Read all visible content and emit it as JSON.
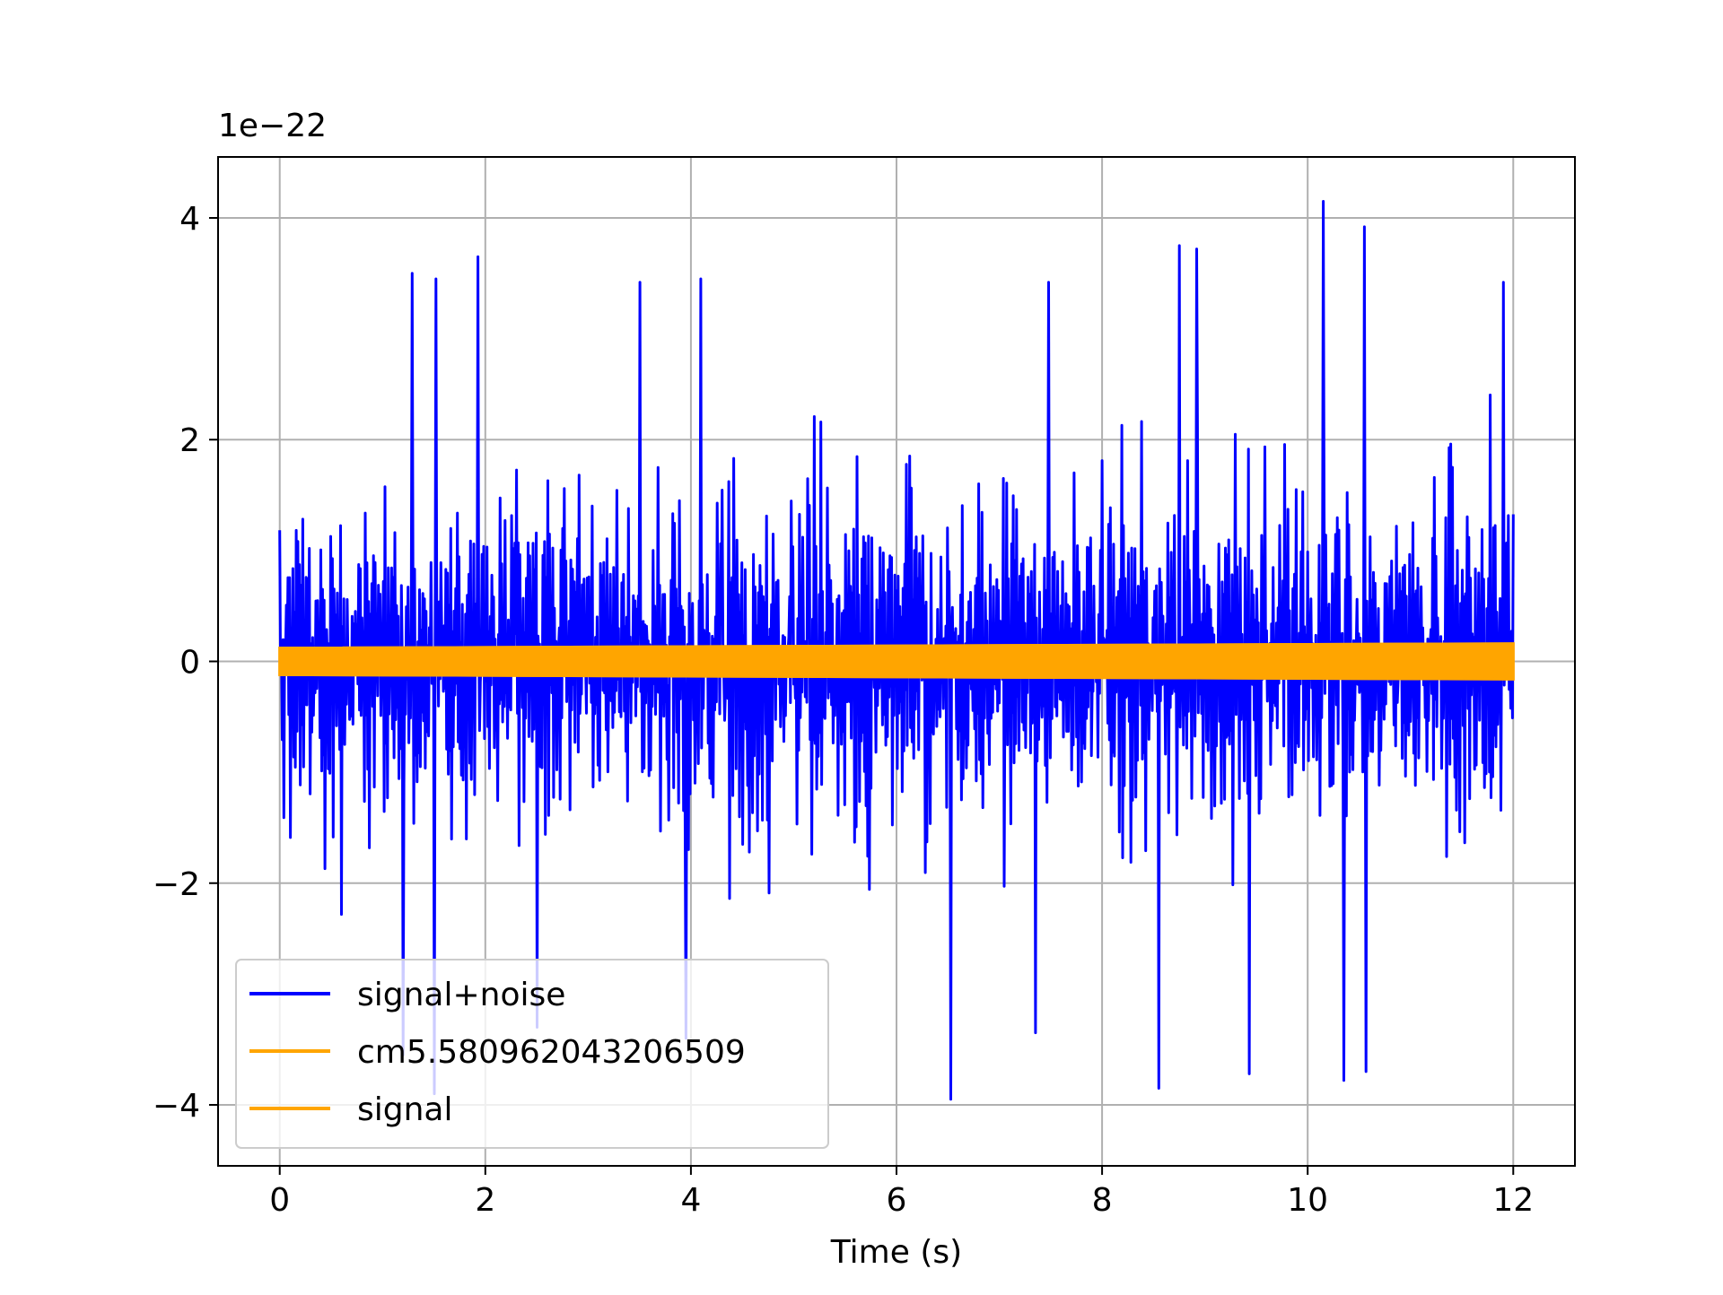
{
  "chart_data": {
    "type": "line",
    "title": "",
    "xlabel": "Time (s)",
    "ylabel": "",
    "y_offset_label": "1e−22",
    "xlim": [
      -0.6,
      12.6
    ],
    "ylim": [
      -4.55,
      4.55
    ],
    "x_ticks": [
      0,
      2,
      4,
      6,
      8,
      10,
      12
    ],
    "x_tick_labels": [
      "0",
      "2",
      "4",
      "6",
      "8",
      "10",
      "12"
    ],
    "y_ticks": [
      -4,
      -2,
      0,
      2,
      4
    ],
    "y_tick_labels": [
      "−4",
      "−2",
      "0",
      "2",
      "4"
    ],
    "grid": true,
    "legend_position": "lower-left",
    "series": [
      {
        "name": "signal+noise",
        "color": "#0000ff",
        "x_range": [
          0,
          12
        ],
        "typical_amplitude": 1.5,
        "max_value": 4.15,
        "min_value": -3.95,
        "peaks": [
          {
            "x": 10.15,
            "y": 4.15
          },
          {
            "x": 10.55,
            "y": 3.92
          },
          {
            "x": 8.75,
            "y": 3.75
          },
          {
            "x": 8.92,
            "y": 3.72
          },
          {
            "x": 1.93,
            "y": 3.65
          },
          {
            "x": 1.29,
            "y": 3.5
          },
          {
            "x": 4.1,
            "y": 3.45
          },
          {
            "x": 3.5,
            "y": 3.42
          },
          {
            "x": 11.9,
            "y": 3.42
          },
          {
            "x": 1.52,
            "y": 3.45
          },
          {
            "x": 7.48,
            "y": 3.42
          },
          {
            "x": 6.53,
            "y": -3.95
          },
          {
            "x": 1.5,
            "y": -3.9
          },
          {
            "x": 10.35,
            "y": -3.78
          },
          {
            "x": 8.55,
            "y": -3.85
          },
          {
            "x": 10.57,
            "y": -3.7
          },
          {
            "x": 9.43,
            "y": -3.72
          },
          {
            "x": 1.2,
            "y": -3.55
          },
          {
            "x": 3.95,
            "y": -3.4
          },
          {
            "x": 7.35,
            "y": -3.35
          },
          {
            "x": 2.5,
            "y": -3.3
          }
        ]
      },
      {
        "name": "cm5.580962043206509",
        "color": "#ffa500",
        "x_range": [
          0,
          12
        ],
        "amplitude_start": 0.12,
        "amplitude_end": 0.16
      },
      {
        "name": "signal",
        "color": "#ffa500",
        "x_range": [
          0,
          12
        ],
        "amplitude_start": 0.12,
        "amplitude_end": 0.16
      }
    ]
  }
}
